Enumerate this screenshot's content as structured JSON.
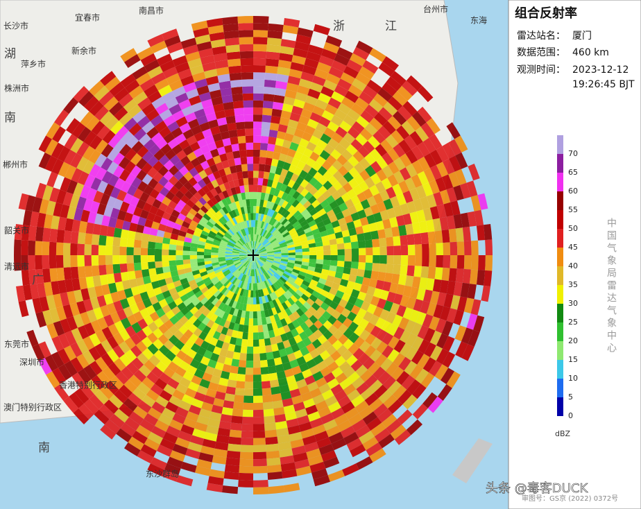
{
  "panel": {
    "title": "组合反射率",
    "rows": [
      {
        "label": "雷达站名：",
        "value": "厦门"
      },
      {
        "label": "数据范围：",
        "value": "460 km"
      },
      {
        "label": "观测时间：",
        "value": "2023-12-12"
      },
      {
        "label": null,
        "value": "19:26:45 BJT"
      }
    ]
  },
  "legend": {
    "unit": "dBZ",
    "ticks": [
      0,
      5,
      10,
      15,
      20,
      25,
      30,
      35,
      40,
      45,
      50,
      55,
      60,
      65,
      70
    ],
    "colors": [
      "#0000a8",
      "#1e6cf0",
      "#3cc8e8",
      "#8ee870",
      "#30c030",
      "#128a12",
      "#f0f000",
      "#e0b828",
      "#f08c10",
      "#e02020",
      "#c00000",
      "#960000",
      "#f030f0",
      "#8c1ea0",
      "#b0a0e0"
    ],
    "source": "中国气象局雷达气象中心"
  },
  "map": {
    "labels": [
      "长沙市",
      "宜春市",
      "南昌市",
      "新余市",
      "萍乡市",
      "湖",
      "株洲市",
      "南",
      "郴州市",
      "韶关市",
      "清远市",
      "广",
      "东莞市",
      "深圳市",
      "香港特别行政区",
      "澳门特别行政区",
      "南",
      "东沙群岛",
      "台州市",
      "东海",
      "浙",
      "江"
    ]
  },
  "footer": {
    "watermark": "头条 @毒客DUCK",
    "approval": "审图号：GS京 (2022) 0372号"
  }
}
